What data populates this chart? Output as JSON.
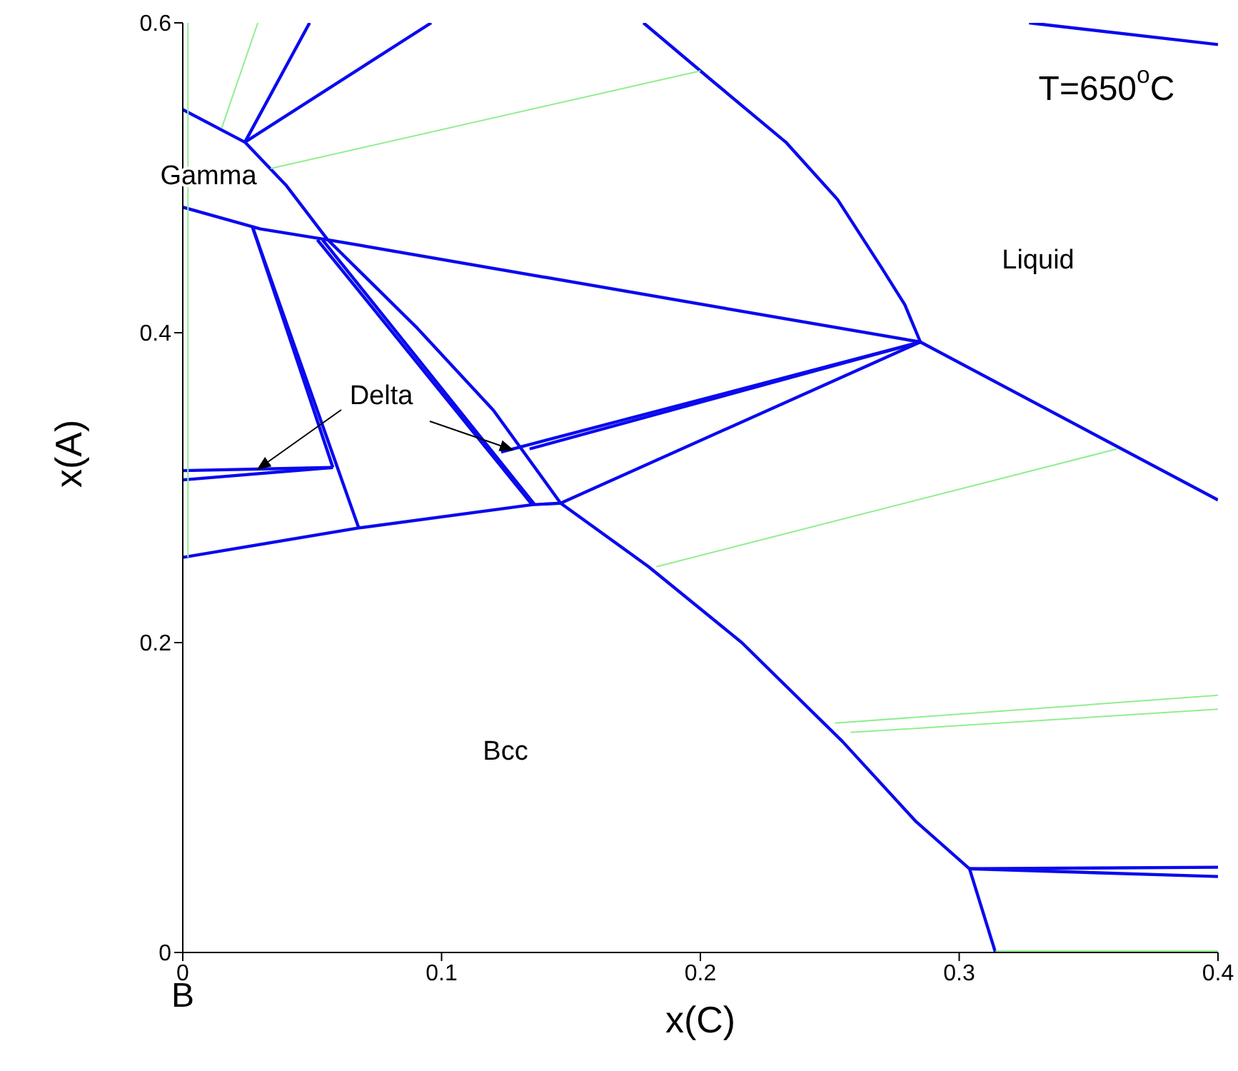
{
  "chart_data": {
    "type": "line",
    "xlabel": "x(C)",
    "ylabel": "x(A)",
    "xlim": [
      0,
      0.4
    ],
    "ylim": [
      0,
      0.6
    ],
    "xticks": [
      0,
      0.1,
      0.2,
      0.3,
      0.4
    ],
    "yticks": [
      0,
      0.2,
      0.4,
      0.6
    ],
    "grid": false,
    "marker": "none",
    "line_style": "solid",
    "series": [
      {
        "color": "#0a0aee",
        "x": [
          0,
          0.024,
          0.04,
          0.056,
          0.09,
          0.12,
          0.146,
          0.18,
          0.216,
          0.255,
          0.283,
          0.304
        ],
        "values": [
          0.544,
          0.523,
          0.495,
          0.46,
          0.404,
          0.35,
          0.29,
          0.249,
          0.2,
          0.136,
          0.085,
          0.054
        ]
      },
      {
        "color": "#0a0aee",
        "x": [
          0.052,
          0.135
        ],
        "values": [
          0.46,
          0.289
        ]
      },
      {
        "color": "#0a0aee",
        "x": [
          0.054,
          0.136
        ],
        "values": [
          0.46,
          0.289
        ]
      },
      {
        "color": "#0a0aee",
        "x": [
          0,
          0.03,
          0.056,
          0.285,
          0.4
        ],
        "values": [
          0.481,
          0.467,
          0.46,
          0.394,
          0.292
        ]
      },
      {
        "color": "#0a0aee",
        "x": [
          0.178,
          0.205,
          0.233,
          0.253,
          0.27,
          0.279,
          0.285
        ],
        "values": [
          0.6,
          0.562,
          0.523,
          0.486,
          0.442,
          0.418,
          0.394
        ]
      },
      {
        "color": "#0a0aee",
        "x": [
          0.285,
          0.123
        ],
        "values": [
          0.394,
          0.323
        ]
      },
      {
        "color": "#0a0aee",
        "x": [
          0.285,
          0.134
        ],
        "values": [
          0.394,
          0.325
        ]
      },
      {
        "color": "#0a0aee",
        "x": [
          0,
          0.058
        ],
        "values": [
          0.311,
          0.313
        ]
      },
      {
        "color": "#0a0aee",
        "x": [
          0,
          0.058
        ],
        "values": [
          0.305,
          0.313
        ]
      },
      {
        "color": "#0a0aee",
        "x": [
          0.027,
          0.068
        ],
        "values": [
          0.468,
          0.274
        ]
      },
      {
        "color": "#0a0aee",
        "x": [
          0.027,
          0.058
        ],
        "values": [
          0.468,
          0.313
        ]
      },
      {
        "color": "#0a0aee",
        "x": [
          0,
          0.068,
          0.135,
          0.146,
          0.285
        ],
        "values": [
          0.255,
          0.274,
          0.289,
          0.29,
          0.394
        ]
      },
      {
        "color": "#0a0aee",
        "x": [
          0.304,
          0.314
        ],
        "values": [
          0.054,
          0
        ]
      },
      {
        "color": "#0a0aee",
        "x": [
          0.304,
          0.4
        ],
        "values": [
          0.054,
          0.055
        ]
      },
      {
        "color": "#0a0aee",
        "x": [
          0.304,
          0.4
        ],
        "values": [
          0.054,
          0.049
        ]
      },
      {
        "color": "#0a0aee",
        "x": [
          0.024,
          0.049
        ],
        "values": [
          0.523,
          0.6
        ]
      },
      {
        "color": "#0a0aee",
        "x": [
          0.024,
          0.096
        ],
        "values": [
          0.523,
          0.6
        ]
      },
      {
        "color": "#0a0aee",
        "x": [
          0.327,
          0.4
        ],
        "values": [
          0.6,
          0.586
        ]
      },
      {
        "color": "#90ee90",
        "x": [
          0.002,
          0.002
        ],
        "values": [
          0.6,
          0.255
        ]
      },
      {
        "color": "#90ee90",
        "x": [
          0.015,
          0.029
        ],
        "values": [
          0.532,
          0.6
        ]
      },
      {
        "color": "#90ee90",
        "x": [
          0.034,
          0.2
        ],
        "values": [
          0.506,
          0.569
        ]
      },
      {
        "color": "#90ee90",
        "x": [
          0.183,
          0.361
        ],
        "values": [
          0.249,
          0.325
        ]
      },
      {
        "color": "#90ee90",
        "x": [
          0.252,
          0.4
        ],
        "values": [
          0.148,
          0.166
        ]
      },
      {
        "color": "#90ee90",
        "x": [
          0.258,
          0.4
        ],
        "values": [
          0.142,
          0.157
        ]
      },
      {
        "color": "#90ee90",
        "x": [
          0.314,
          0.4
        ],
        "values": [
          0.001,
          0.001
        ]
      }
    ],
    "annotations": [
      {
        "text": "Delta",
        "x": 0.029,
        "y": 0.312
      },
      "Gamma",
      "Liquid",
      "Bcc",
      "T=650$^{o}$C",
      "B"
    ]
  }
}
